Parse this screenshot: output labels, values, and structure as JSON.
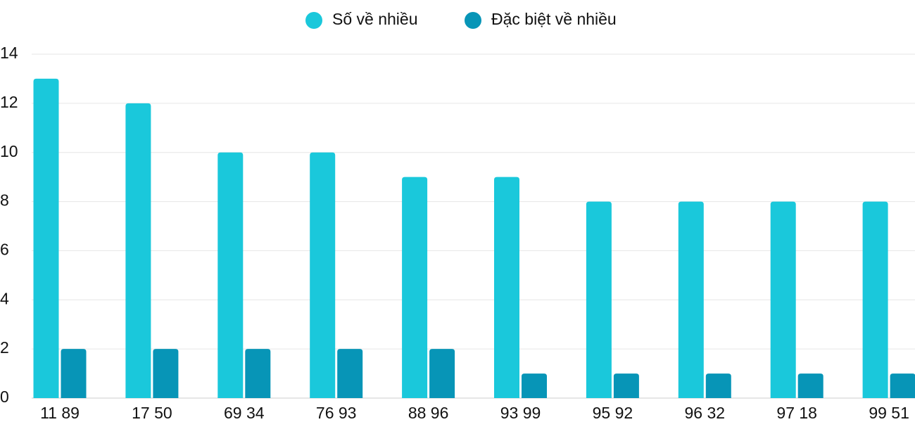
{
  "chart_data": {
    "type": "bar",
    "categories": [
      "11 89",
      "17 50",
      "69 34",
      "76 93",
      "88 96",
      "93 99",
      "95 92",
      "96 32",
      "97 18",
      "99 51"
    ],
    "series": [
      {
        "name": "Số về nhiều",
        "color": "#1ac8db",
        "values": [
          13,
          12,
          10,
          10,
          9,
          9,
          8,
          8,
          8,
          8
        ]
      },
      {
        "name": "Đặc biệt về nhiều",
        "color": "#0795b7",
        "values": [
          2,
          2,
          2,
          2,
          2,
          1,
          1,
          1,
          1,
          1
        ]
      }
    ],
    "ylim": [
      0,
      14
    ],
    "yticks": [
      0,
      2,
      4,
      6,
      8,
      10,
      12,
      14
    ],
    "grid": true,
    "legend": "top"
  }
}
